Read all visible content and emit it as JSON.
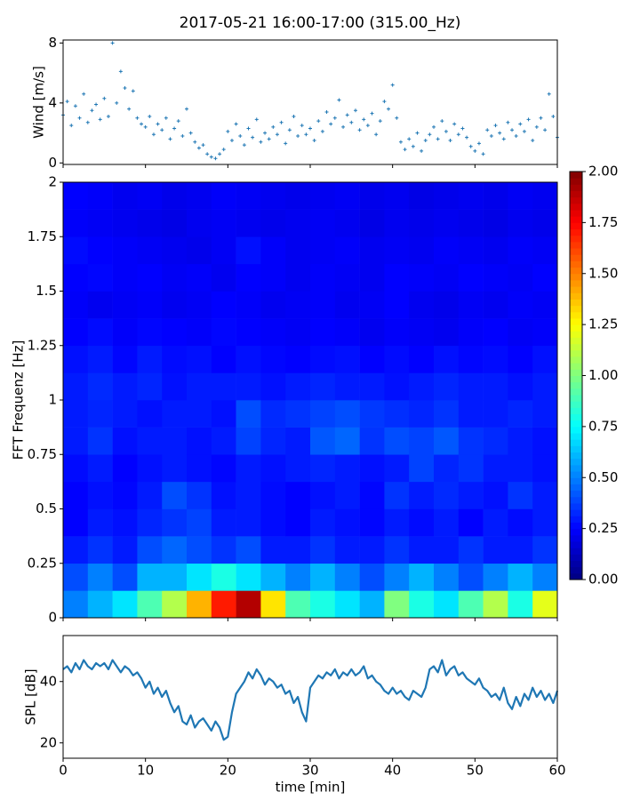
{
  "chart_data": [
    {
      "type": "scatter",
      "title": "2017-05-21 16:00-17:00 (315.00_Hz)",
      "ylabel": "Wind [m/s]",
      "color": "#1f77b4",
      "x": [
        0,
        0.5,
        1,
        1.5,
        2,
        2.5,
        3,
        3.5,
        4,
        4.5,
        5,
        5.5,
        6,
        6.5,
        7,
        7.5,
        8,
        8.5,
        9,
        9.5,
        10,
        10.5,
        11,
        11.5,
        12,
        12.5,
        13,
        13.5,
        14,
        14.5,
        15,
        15.5,
        16,
        16.5,
        17,
        17.5,
        18,
        18.5,
        19,
        19.5,
        20,
        20.5,
        21,
        21.5,
        22,
        22.5,
        23,
        23.5,
        24,
        24.5,
        25,
        25.5,
        26,
        26.5,
        27,
        27.5,
        28,
        28.5,
        29,
        29.5,
        30,
        30.5,
        31,
        31.5,
        32,
        32.5,
        33,
        33.5,
        34,
        34.5,
        35,
        35.5,
        36,
        36.5,
        37,
        37.5,
        38,
        38.5,
        39,
        39.5,
        40,
        40.5,
        41,
        41.5,
        42,
        42.5,
        43,
        43.5,
        44,
        44.5,
        45,
        45.5,
        46,
        46.5,
        47,
        47.5,
        48,
        48.5,
        49,
        49.5,
        50,
        50.5,
        51,
        51.5,
        52,
        52.5,
        53,
        53.5,
        54,
        54.5,
        55,
        55.5,
        56,
        56.5,
        57,
        57.5,
        58,
        58.5,
        59,
        59.5,
        60
      ],
      "values": [
        3.2,
        4.1,
        2.5,
        3.8,
        3.0,
        4.6,
        2.7,
        3.5,
        3.9,
        2.9,
        4.3,
        3.1,
        8.0,
        4.0,
        6.1,
        5.0,
        3.6,
        4.8,
        3.0,
        2.6,
        2.4,
        3.1,
        1.9,
        2.6,
        2.2,
        3.0,
        1.6,
        2.3,
        2.8,
        1.8,
        3.6,
        2.0,
        1.4,
        1.0,
        1.2,
        0.6,
        0.4,
        0.3,
        0.6,
        0.9,
        2.1,
        1.5,
        2.6,
        1.8,
        1.2,
        2.3,
        1.7,
        2.9,
        1.4,
        2.0,
        1.6,
        2.4,
        1.9,
        2.7,
        1.3,
        2.2,
        3.1,
        1.8,
        2.5,
        1.9,
        2.3,
        1.5,
        2.8,
        2.1,
        3.4,
        2.6,
        3.0,
        4.2,
        2.4,
        3.2,
        2.7,
        3.5,
        2.2,
        2.9,
        2.5,
        3.3,
        1.9,
        2.8,
        4.1,
        3.6,
        5.2,
        3.0,
        1.4,
        0.9,
        1.6,
        1.1,
        2.0,
        0.8,
        1.5,
        1.9,
        2.4,
        1.6,
        2.8,
        2.1,
        1.5,
        2.6,
        1.9,
        2.3,
        1.7,
        1.1,
        0.8,
        1.3,
        0.6,
        2.2,
        1.8,
        2.5,
        2.0,
        1.6,
        2.7,
        2.2,
        1.8,
        2.6,
        2.1,
        2.9,
        1.5,
        2.4,
        3.0,
        2.2,
        4.6,
        3.1,
        1.7
      ],
      "xlim": [
        0,
        60
      ],
      "ylim": [
        -0.1,
        8.2
      ],
      "yticks": [
        0,
        4,
        8
      ]
    },
    {
      "type": "heatmap",
      "ylabel": "FFT Frequenz [Hz]",
      "x_bins": [
        0,
        3,
        6,
        9,
        12,
        15,
        18,
        21,
        24,
        27,
        30,
        33,
        36,
        39,
        42,
        45,
        48,
        51,
        54,
        57,
        60
      ],
      "y_bins": [
        0,
        0.125,
        0.25,
        0.375,
        0.5,
        0.625,
        0.75,
        0.875,
        1,
        1.125,
        1.25,
        1.375,
        1.5,
        1.625,
        1.75,
        1.875,
        2
      ],
      "z": [
        [
          0.5,
          0.6,
          0.7,
          0.9,
          1.1,
          1.4,
          1.7,
          1.9,
          1.3,
          0.9,
          0.8,
          0.7,
          0.6,
          1.0,
          0.8,
          0.7,
          0.9,
          1.1,
          0.8,
          1.2
        ],
        [
          0.4,
          0.5,
          0.4,
          0.6,
          0.6,
          0.7,
          0.8,
          0.7,
          0.6,
          0.5,
          0.6,
          0.5,
          0.4,
          0.5,
          0.6,
          0.5,
          0.4,
          0.5,
          0.6,
          0.5
        ],
        [
          0.3,
          0.35,
          0.3,
          0.4,
          0.45,
          0.4,
          0.35,
          0.4,
          0.3,
          0.3,
          0.35,
          0.3,
          0.3,
          0.35,
          0.3,
          0.3,
          0.35,
          0.3,
          0.3,
          0.35
        ],
        [
          0.25,
          0.3,
          0.28,
          0.32,
          0.35,
          0.38,
          0.3,
          0.3,
          0.27,
          0.25,
          0.3,
          0.28,
          0.26,
          0.3,
          0.27,
          0.3,
          0.25,
          0.3,
          0.27,
          0.3
        ],
        [
          0.25,
          0.28,
          0.26,
          0.3,
          0.4,
          0.35,
          0.28,
          0.3,
          0.27,
          0.25,
          0.28,
          0.3,
          0.26,
          0.35,
          0.3,
          0.33,
          0.3,
          0.28,
          0.35,
          0.3
        ],
        [
          0.27,
          0.3,
          0.25,
          0.28,
          0.3,
          0.28,
          0.26,
          0.3,
          0.28,
          0.3,
          0.32,
          0.3,
          0.28,
          0.3,
          0.38,
          0.32,
          0.35,
          0.3,
          0.3,
          0.28
        ],
        [
          0.3,
          0.35,
          0.28,
          0.3,
          0.3,
          0.28,
          0.3,
          0.38,
          0.32,
          0.3,
          0.42,
          0.45,
          0.35,
          0.4,
          0.38,
          0.42,
          0.35,
          0.33,
          0.3,
          0.28
        ],
        [
          0.3,
          0.32,
          0.3,
          0.28,
          0.3,
          0.3,
          0.28,
          0.4,
          0.33,
          0.35,
          0.38,
          0.4,
          0.36,
          0.34,
          0.32,
          0.35,
          0.3,
          0.3,
          0.32,
          0.3
        ],
        [
          0.3,
          0.33,
          0.3,
          0.32,
          0.28,
          0.3,
          0.3,
          0.3,
          0.28,
          0.3,
          0.32,
          0.3,
          0.3,
          0.28,
          0.3,
          0.32,
          0.3,
          0.3,
          0.28,
          0.3
        ],
        [
          0.28,
          0.3,
          0.26,
          0.3,
          0.27,
          0.28,
          0.25,
          0.28,
          0.26,
          0.25,
          0.27,
          0.28,
          0.25,
          0.27,
          0.25,
          0.28,
          0.26,
          0.27,
          0.25,
          0.28
        ],
        [
          0.25,
          0.27,
          0.24,
          0.26,
          0.25,
          0.24,
          0.26,
          0.25,
          0.24,
          0.23,
          0.25,
          0.24,
          0.22,
          0.24,
          0.23,
          0.22,
          0.24,
          0.25,
          0.23,
          0.24
        ],
        [
          0.24,
          0.22,
          0.23,
          0.24,
          0.22,
          0.23,
          0.25,
          0.24,
          0.22,
          0.23,
          0.24,
          0.22,
          0.23,
          0.25,
          0.22,
          0.21,
          0.23,
          0.22,
          0.24,
          0.23
        ],
        [
          0.25,
          0.26,
          0.24,
          0.25,
          0.23,
          0.24,
          0.22,
          0.25,
          0.24,
          0.22,
          0.24,
          0.23,
          0.22,
          0.25,
          0.24,
          0.23,
          0.25,
          0.24,
          0.23,
          0.25
        ],
        [
          0.27,
          0.25,
          0.24,
          0.23,
          0.22,
          0.21,
          0.23,
          0.28,
          0.24,
          0.22,
          0.23,
          0.24,
          0.22,
          0.23,
          0.22,
          0.24,
          0.23,
          0.22,
          0.24,
          0.23
        ],
        [
          0.24,
          0.23,
          0.22,
          0.21,
          0.2,
          0.22,
          0.23,
          0.22,
          0.21,
          0.22,
          0.23,
          0.22,
          0.2,
          0.22,
          0.21,
          0.22,
          0.21,
          0.2,
          0.22,
          0.21
        ],
        [
          0.25,
          0.24,
          0.22,
          0.23,
          0.21,
          0.22,
          0.24,
          0.23,
          0.22,
          0.21,
          0.22,
          0.23,
          0.21,
          0.22,
          0.2,
          0.21,
          0.22,
          0.21,
          0.23,
          0.22
        ]
      ],
      "xlim": [
        0,
        60
      ],
      "ylim": [
        0,
        2
      ],
      "yticks": [
        0,
        0.25,
        0.5,
        0.75,
        1,
        1.25,
        1.5,
        1.75,
        2
      ],
      "colorbar": {
        "colormap": "jet",
        "lim": [
          0,
          2
        ],
        "ticks": [
          {
            "value": 0,
            "label": "0.00"
          },
          {
            "value": 0.25,
            "label": "0.25"
          },
          {
            "value": 0.5,
            "label": "0.50"
          },
          {
            "value": 0.75,
            "label": "0.75"
          },
          {
            "value": 1,
            "label": "1.00"
          },
          {
            "value": 1.25,
            "label": "1.25"
          },
          {
            "value": 1.5,
            "label": "1.50"
          },
          {
            "value": 1.75,
            "label": "1.75"
          },
          {
            "value": 2,
            "label": "2.00"
          }
        ]
      }
    },
    {
      "type": "line",
      "ylabel": "SPL [dB]",
      "xlabel": "time [min]",
      "color": "#1f77b4",
      "x": [
        0,
        0.5,
        1,
        1.5,
        2,
        2.5,
        3,
        3.5,
        4,
        4.5,
        5,
        5.5,
        6,
        6.5,
        7,
        7.5,
        8,
        8.5,
        9,
        9.5,
        10,
        10.5,
        11,
        11.5,
        12,
        12.5,
        13,
        13.5,
        14,
        14.5,
        15,
        15.5,
        16,
        16.5,
        17,
        17.5,
        18,
        18.5,
        19,
        19.5,
        20,
        20.5,
        21,
        21.5,
        22,
        22.5,
        23,
        23.5,
        24,
        24.5,
        25,
        25.5,
        26,
        26.5,
        27,
        27.5,
        28,
        28.5,
        29,
        29.5,
        30,
        30.5,
        31,
        31.5,
        32,
        32.5,
        33,
        33.5,
        34,
        34.5,
        35,
        35.5,
        36,
        36.5,
        37,
        37.5,
        38,
        38.5,
        39,
        39.5,
        40,
        40.5,
        41,
        41.5,
        42,
        42.5,
        43,
        43.5,
        44,
        44.5,
        45,
        45.5,
        46,
        46.5,
        47,
        47.5,
        48,
        48.5,
        49,
        49.5,
        50,
        50.5,
        51,
        51.5,
        52,
        52.5,
        53,
        53.5,
        54,
        54.5,
        55,
        55.5,
        56,
        56.5,
        57,
        57.5,
        58,
        58.5,
        59,
        59.5,
        60
      ],
      "values": [
        44,
        45,
        43,
        46,
        44,
        47,
        45,
        44,
        46,
        45,
        46,
        44,
        47,
        45,
        43,
        45,
        44,
        42,
        43,
        41,
        38,
        40,
        36,
        38,
        35,
        37,
        33,
        30,
        32,
        27,
        26,
        29,
        25,
        27,
        28,
        26,
        24,
        27,
        25,
        21,
        22,
        30,
        36,
        38,
        40,
        43,
        41,
        44,
        42,
        39,
        41,
        40,
        38,
        39,
        36,
        37,
        33,
        35,
        30,
        27,
        38,
        40,
        42,
        41,
        43,
        42,
        44,
        41,
        43,
        42,
        44,
        42,
        43,
        45,
        41,
        42,
        40,
        39,
        37,
        36,
        38,
        36,
        37,
        35,
        34,
        37,
        36,
        35,
        38,
        44,
        45,
        43,
        47,
        42,
        44,
        45,
        42,
        43,
        41,
        40,
        39,
        41,
        38,
        37,
        35,
        36,
        34,
        38,
        33,
        31,
        35,
        32,
        36,
        34,
        38,
        35,
        37,
        34,
        36,
        33,
        37
      ],
      "xlim": [
        0,
        60
      ],
      "ylim": [
        15,
        55
      ],
      "xticks": [
        0,
        10,
        20,
        30,
        40,
        50,
        60
      ],
      "yticks": [
        20,
        40
      ]
    }
  ]
}
